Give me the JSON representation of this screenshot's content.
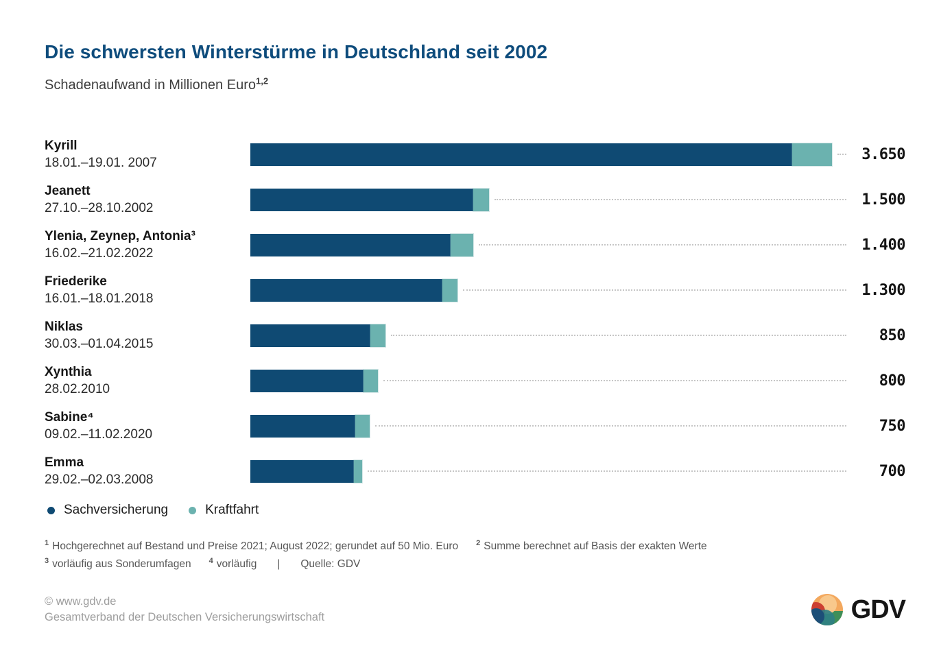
{
  "title": "Die schwersten Winterstürme in Deutschland seit 2002",
  "subtitle": "Schadenaufwand in Millionen Euro",
  "subtitle_superscript": "1,2",
  "colors": {
    "title": "#0e4c7c",
    "sachversicherung": "#0f4a73",
    "kraftfahrt": "#6bb2af",
    "leader_dots": "#c6c6c6"
  },
  "chart_data": {
    "type": "bar",
    "orientation": "horizontal",
    "unit": "Millionen Euro",
    "grid": false,
    "legend_position": "bottom",
    "xlim": [
      0,
      3650
    ],
    "categories": [
      "Kyrill",
      "Jeanett",
      "Ylenia, Zeynep, Antonia³",
      "Friederike",
      "Niklas",
      "Xynthia",
      "Sabine⁴",
      "Emma"
    ],
    "date_ranges": [
      "18.01.–19.01. 2007",
      "27.10.–28.10.2002",
      "16.02.–21.02.2022",
      "16.01.–18.01.2018",
      "30.03.–01.04.2015",
      "28.02.2010",
      "09.02.–11.02.2020",
      "29.02.–02.03.2008"
    ],
    "series": [
      {
        "name": "Sachversicherung",
        "color": "#0f4a73",
        "values": [
          3400,
          1400,
          1255,
          1205,
          755,
          710,
          660,
          650
        ]
      },
      {
        "name": "Kraftfahrt",
        "color": "#6bb2af",
        "values": [
          250,
          100,
          145,
          95,
          95,
          90,
          90,
          50
        ]
      }
    ],
    "totals": [
      3650,
      1500,
      1400,
      1300,
      850,
      800,
      750,
      700
    ],
    "total_labels": [
      "3.650",
      "1.500",
      "1.400",
      "1.300",
      "850",
      "800",
      "750",
      "700"
    ]
  },
  "footnotes": {
    "line1": [
      {
        "marker": "1",
        "text": "Hochgerechnet auf Bestand und Preise 2021; August 2022; gerundet auf 50 Mio. Euro"
      },
      {
        "marker": "2",
        "text": "Summe berechnet auf Basis der exakten Werte"
      }
    ],
    "line2": [
      {
        "marker": "3",
        "text": "vorläufig aus Sonderumfagen"
      },
      {
        "marker": "4",
        "text": "vorläufig"
      }
    ],
    "separator": "|",
    "source": "Quelle: GDV"
  },
  "footer": {
    "copyright": "© www.gdv.de",
    "organization": "Gesamtverband der Deutschen Versicherungswirtschaft",
    "logo_text": "GDV"
  }
}
